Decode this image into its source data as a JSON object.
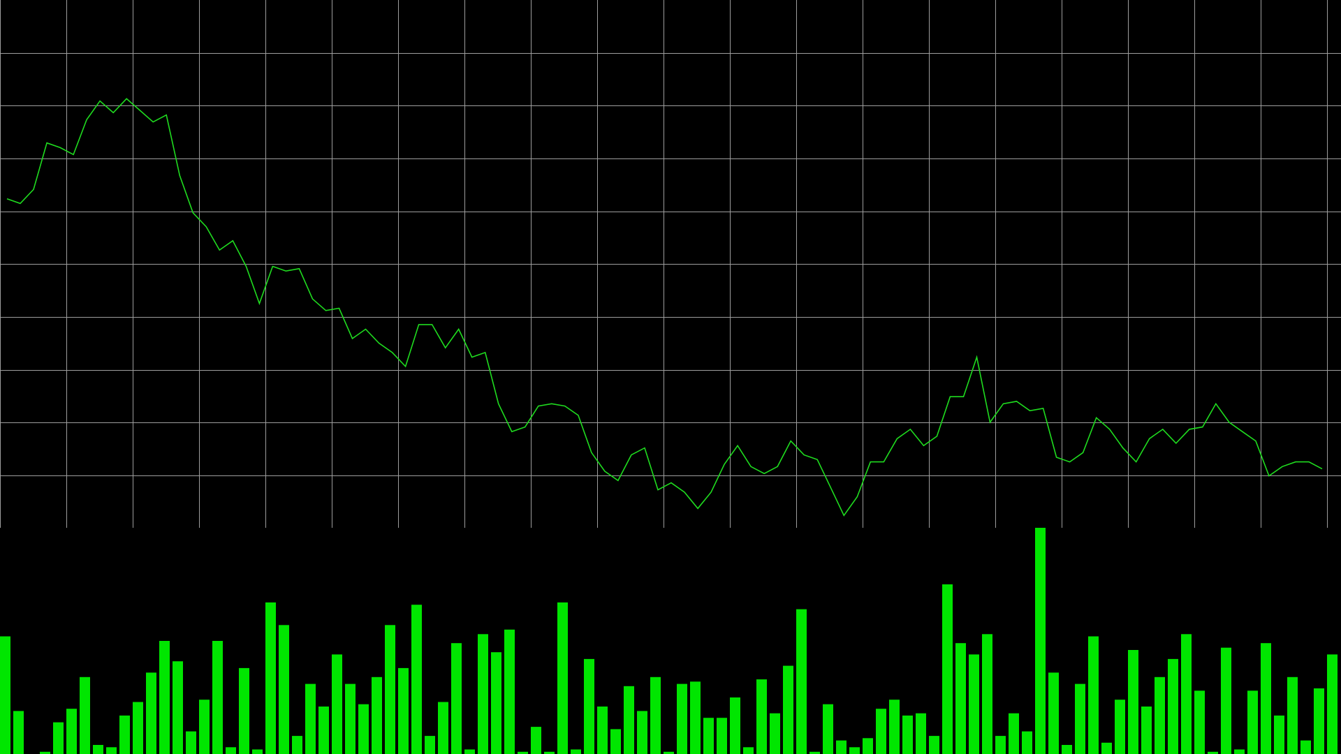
{
  "colors": {
    "background": "#000000",
    "grid": "#9e9e9e",
    "line": "#1fdc1f",
    "bars": "#00e600"
  },
  "chart_data": [
    {
      "type": "line",
      "title": "",
      "xlabel": "",
      "ylabel": "",
      "grid": true,
      "ylim": [
        0,
        10
      ],
      "x_count": 100,
      "values": [
        6.9,
        6.8,
        7.1,
        8.1,
        8.0,
        7.85,
        8.6,
        9.0,
        8.75,
        9.05,
        8.8,
        8.55,
        8.7,
        7.4,
        6.6,
        6.3,
        5.8,
        6.0,
        5.45,
        4.65,
        5.45,
        5.35,
        5.4,
        4.75,
        4.5,
        4.55,
        3.9,
        4.1,
        3.8,
        3.6,
        3.3,
        4.2,
        4.2,
        3.7,
        4.1,
        3.5,
        3.6,
        2.5,
        1.9,
        2.0,
        2.45,
        2.5,
        2.45,
        2.25,
        1.45,
        1.05,
        0.85,
        1.4,
        1.55,
        0.65,
        0.8,
        0.6,
        0.25,
        0.6,
        1.2,
        1.6,
        1.15,
        1.0,
        1.15,
        1.7,
        1.4,
        1.3,
        0.7,
        0.1,
        0.5,
        1.25,
        1.25,
        1.75,
        1.95,
        1.6,
        1.8,
        2.65,
        2.65,
        3.5,
        2.1,
        2.5,
        2.55,
        2.35,
        2.4,
        1.35,
        1.25,
        1.45,
        2.2,
        1.95,
        1.55,
        1.25,
        1.75,
        1.95,
        1.65,
        1.95,
        2.0,
        2.5,
        2.1,
        1.9,
        1.7,
        0.95,
        1.15,
        1.25,
        1.25,
        1.1
      ]
    },
    {
      "type": "bar",
      "title": "",
      "xlabel": "",
      "ylabel": "",
      "grid": false,
      "ylim": [
        0,
        100
      ],
      "values": [
        52,
        19,
        0,
        1,
        14,
        20,
        34,
        4,
        3,
        17,
        23,
        36,
        50,
        41,
        10,
        24,
        50,
        3,
        38,
        2,
        67,
        57,
        8,
        31,
        21,
        44,
        31,
        22,
        34,
        57,
        38,
        66,
        8,
        23,
        49,
        2,
        53,
        45,
        55,
        1,
        12,
        1,
        67,
        2,
        42,
        21,
        11,
        30,
        19,
        34,
        1,
        31,
        32,
        16,
        16,
        25,
        3,
        33,
        18,
        39,
        64,
        1,
        22,
        6,
        3,
        7,
        20,
        24,
        17,
        18,
        8,
        75,
        49,
        44,
        53,
        8,
        18,
        10,
        100,
        36,
        4,
        31,
        52,
        5,
        24,
        46,
        21,
        34,
        42,
        53,
        28,
        1,
        47,
        2,
        28,
        49,
        17,
        34,
        6,
        29,
        44
      ]
    }
  ]
}
